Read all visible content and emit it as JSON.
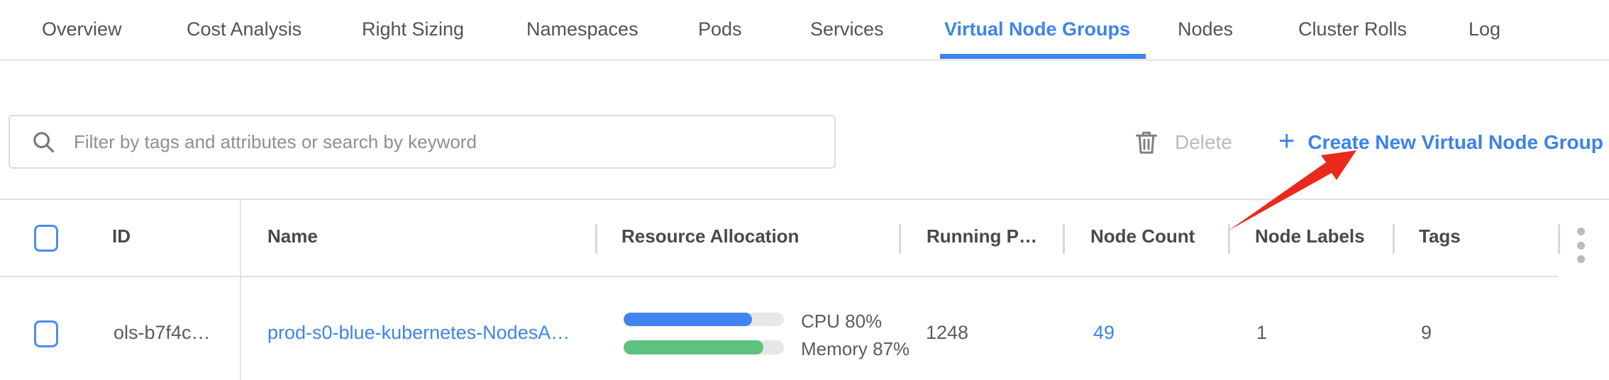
{
  "tabs": [
    {
      "label": "Overview",
      "active": false
    },
    {
      "label": "Cost Analysis",
      "active": false
    },
    {
      "label": "Right Sizing",
      "active": false
    },
    {
      "label": "Namespaces",
      "active": false
    },
    {
      "label": "Pods",
      "active": false
    },
    {
      "label": "Services",
      "active": false
    },
    {
      "label": "Virtual Node Groups",
      "active": true
    },
    {
      "label": "Nodes",
      "active": false
    },
    {
      "label": "Cluster Rolls",
      "active": false
    },
    {
      "label": "Log",
      "active": false
    }
  ],
  "toolbar": {
    "search_placeholder": "Filter by tags and attributes or search by keyword",
    "delete_label": "Delete",
    "create_plus": "+",
    "create_label": "Create New Virtual Node Group"
  },
  "table": {
    "headers": {
      "id": "ID",
      "name": "Name",
      "resource_allocation": "Resource Allocation",
      "running_pods": "Running P…",
      "node_count": "Node Count",
      "node_labels": "Node Labels",
      "tags": "Tags"
    }
  },
  "rows": [
    {
      "id": "ols-b7f4c…",
      "name": "prod-s0-blue-kubernetes-NodesA…",
      "cpu_label": "CPU 80%",
      "cpu_pct": 80,
      "memory_label": "Memory 87%",
      "memory_pct": 87,
      "running_pods": "1248",
      "node_count": "49",
      "node_labels": "1",
      "tags": "9"
    }
  ],
  "colors": {
    "accent_blue": "#3d84ec",
    "link_blue": "#3d85e8",
    "bar_blue": "#4285f0",
    "bar_green": "#5ec17f",
    "track_gray": "#e7e7e7",
    "arrow_red": "#e8291c",
    "disabled_text": "#b9bcbf"
  }
}
